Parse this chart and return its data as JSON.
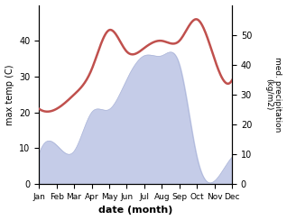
{
  "months": [
    "Jan",
    "Feb",
    "Mar",
    "Apr",
    "May",
    "Jun",
    "Jul",
    "Aug",
    "Sep",
    "Oct",
    "Nov",
    "Dec"
  ],
  "month_indices": [
    1,
    2,
    3,
    4,
    5,
    6,
    7,
    8,
    9,
    10,
    11,
    12
  ],
  "temperature": [
    21,
    21,
    25,
    32,
    43,
    37,
    38,
    40,
    40,
    46,
    35,
    29
  ],
  "precipitation": [
    10,
    13,
    11,
    24,
    25,
    35,
    43,
    43,
    40,
    9,
    1,
    9
  ],
  "temp_color": "#c0504d",
  "precip_fill_color": "#c5cce8",
  "precip_line_color": "#aab4d8",
  "ylabel_left": "max temp (C)",
  "ylabel_right": "med. precipitation\n(kg/m2)",
  "xlabel": "date (month)",
  "ylim_left": [
    0,
    50
  ],
  "ylim_right": [
    0,
    60
  ],
  "yticks_left": [
    0,
    10,
    20,
    30,
    40
  ],
  "yticks_right": [
    0,
    10,
    20,
    30,
    40,
    50
  ],
  "background_color": "#ffffff"
}
